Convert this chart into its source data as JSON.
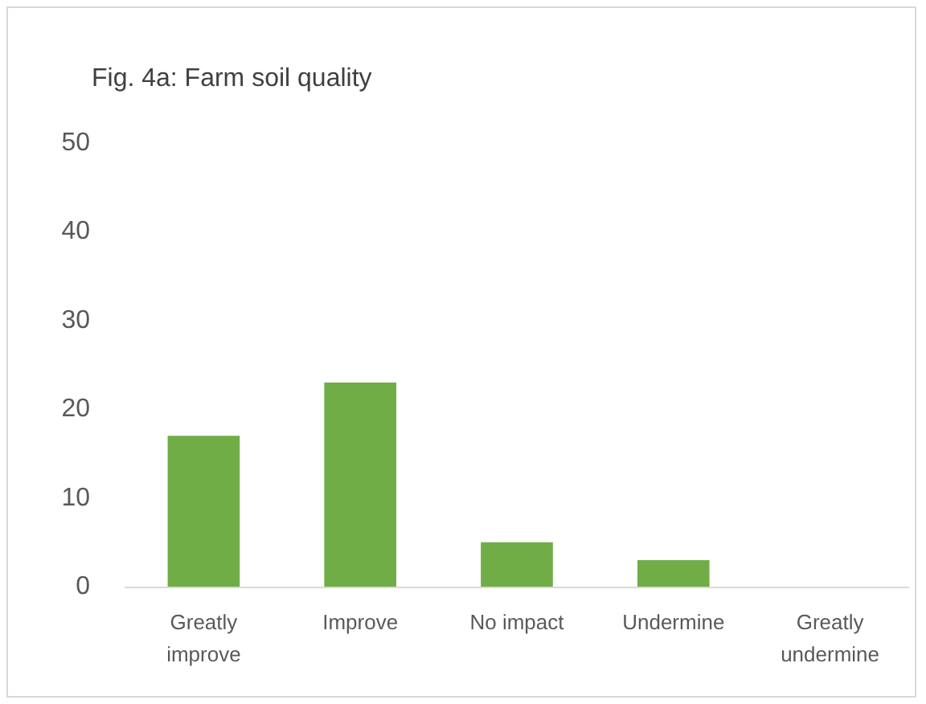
{
  "chart_data": {
    "type": "bar",
    "title": "Fig. 4a: Farm soil quality",
    "categories": [
      "Greatly\nimprove",
      "Improve",
      "No impact",
      "Undermine",
      "Greatly\nundermine"
    ],
    "values": [
      17,
      23,
      5,
      3,
      0
    ],
    "color": "#70ad47",
    "ylim": [
      0,
      50
    ],
    "yticks": [
      0,
      10,
      20,
      30,
      40,
      50
    ]
  }
}
